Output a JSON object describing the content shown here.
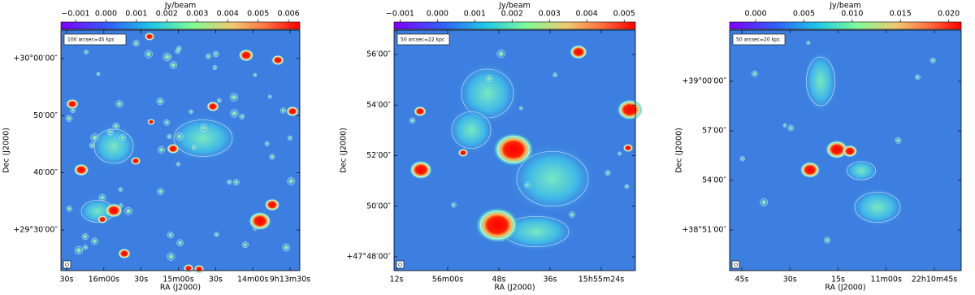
{
  "chart_data": [
    {
      "type": "image",
      "colorbar_label": "Jy/beam",
      "clim": [
        -0.00148,
        0.00637
      ],
      "cticks": [
        {
          "value": -0.001,
          "label": "−0.001"
        },
        {
          "value": 0,
          "label": "0.000"
        },
        {
          "value": 0.001,
          "label": "0.001"
        },
        {
          "value": 0.002,
          "label": "0.002"
        },
        {
          "value": 0.003,
          "label": "0.003"
        },
        {
          "value": 0.004,
          "label": "0.004"
        },
        {
          "value": 0.005,
          "label": "0.005"
        },
        {
          "value": 0.006,
          "label": "0.006"
        }
      ],
      "xlabel": "RA (J2000)",
      "ylabel": "Dec (J2000)",
      "xtick_labels": [
        "30s",
        "16m00s",
        "30s",
        "15m00s",
        "30s",
        "14m00s",
        "9h13m30s"
      ],
      "ytick_labels": [
        "+30°00′00″",
        "50′00″",
        "40′00″",
        "+29°30′00″"
      ],
      "scale_label": "100 arcsec=45 kpc"
    },
    {
      "type": "image",
      "colorbar_label": "Jy/beam",
      "clim": [
        -0.00116,
        0.0053
      ],
      "cticks": [
        {
          "value": -0.001,
          "label": "−0.001"
        },
        {
          "value": 0,
          "label": "0.000"
        },
        {
          "value": 0.001,
          "label": "0.001"
        },
        {
          "value": 0.002,
          "label": "0.002"
        },
        {
          "value": 0.003,
          "label": "0.003"
        },
        {
          "value": 0.004,
          "label": "0.004"
        },
        {
          "value": 0.005,
          "label": "0.005"
        }
      ],
      "xlabel": "RA (J2000)",
      "ylabel": "Dec (J2000)",
      "xtick_labels": [
        "12s",
        "56m00s",
        "48s",
        "36s",
        "15h55m24s"
      ],
      "ytick_labels": [
        "56′00″",
        "54′00″",
        "52′00″",
        "50′00″",
        "+47°48′00″"
      ],
      "scale_label": "50 arcsec=22 kpc"
    },
    {
      "type": "image",
      "colorbar_label": "Jy/beam",
      "clim": [
        -0.0027,
        0.0213
      ],
      "cticks": [
        {
          "value": 0,
          "label": "0.000"
        },
        {
          "value": 0.005,
          "label": "0.005"
        },
        {
          "value": 0.01,
          "label": "0.010"
        },
        {
          "value": 0.015,
          "label": "0.015"
        },
        {
          "value": 0.02,
          "label": "0.020"
        }
      ],
      "xlabel": "RA (J2000)",
      "ylabel": "Dec (J2000)",
      "xtick_labels": [
        "45s",
        "30s",
        "15s",
        "11m00s",
        "22h10m45s"
      ],
      "ytick_labels": [
        "+39°00′00″",
        "57′00″",
        "54′00″",
        "+38°51′00″"
      ],
      "scale_label": "50 arcsec=20 kpc"
    }
  ]
}
